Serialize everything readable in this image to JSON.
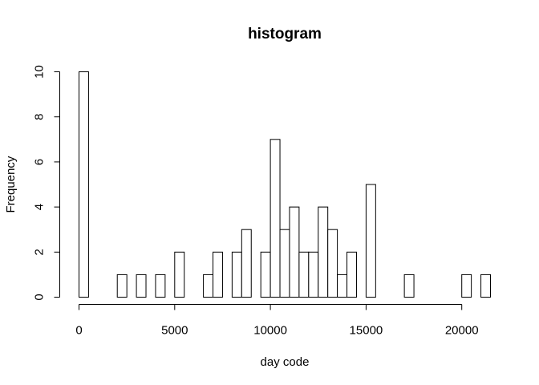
{
  "chart_data": {
    "type": "histogram",
    "title": "histogram",
    "xlabel": "day code",
    "ylabel": "Frequency",
    "bin_width": 500,
    "bin_start": 0,
    "counts": [
      10,
      0,
      0,
      0,
      1,
      0,
      1,
      0,
      1,
      0,
      2,
      0,
      0,
      1,
      2,
      0,
      2,
      3,
      0,
      2,
      7,
      3,
      4,
      2,
      2,
      4,
      3,
      1,
      2,
      0,
      5,
      0,
      0,
      0,
      1,
      0,
      0,
      0,
      0,
      0,
      1,
      0,
      1
    ],
    "xlim": [
      0,
      21500
    ],
    "ylim": [
      0,
      10
    ],
    "x_ticks": [
      "0",
      "5000",
      "10000",
      "15000",
      "20000"
    ],
    "y_ticks": [
      "0",
      "2",
      "4",
      "6",
      "8",
      "10"
    ]
  }
}
